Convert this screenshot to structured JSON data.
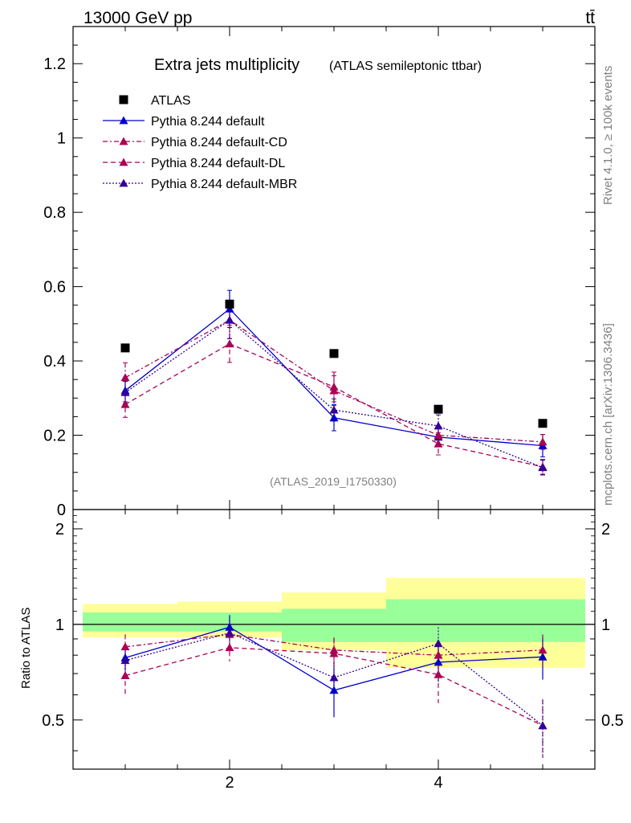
{
  "header": {
    "energy_label": "13000 GeV pp",
    "process_label": "tt̄"
  },
  "side_labels": {
    "rivet": "Rivet 4.1.0, ≥ 100k events",
    "mcplots": "mcplots.cern.ch [arXiv:1306.3436]"
  },
  "chart_data": {
    "type": "scatter",
    "title": "Extra jets multiplicity",
    "subtitle": "(ATLAS semileptonic ttbar)",
    "watermark": "(ATLAS_2019_I1750330)",
    "xlabel": "",
    "ylabel": "",
    "ratio_ylabel": "Ratio to ATLAS",
    "xlim": [
      0.5,
      5.5
    ],
    "ylim": [
      0,
      1.3
    ],
    "ratio_ylim": [
      0.35,
      2.3
    ],
    "x": [
      1,
      2,
      3,
      4,
      5
    ],
    "x_ticks": [
      2,
      4
    ],
    "x_tick_labels": [
      "2",
      "4"
    ],
    "y_ticks": [
      0,
      0.2,
      0.4,
      0.6,
      0.8,
      1,
      1.2
    ],
    "y_tick_labels": [
      "0",
      "0.2",
      "0.4",
      "0.6",
      "0.8",
      "1",
      "1.2"
    ],
    "ratio_ticks": [
      0.5,
      1,
      2
    ],
    "ratio_tick_labels": [
      "0.5",
      "1",
      "2"
    ],
    "band_edges": [
      0.5,
      1.5,
      2.5,
      3.5,
      4.5,
      5.5
    ],
    "band_inner": [
      [
        0.95,
        1.09
      ],
      [
        0.95,
        1.09
      ],
      [
        0.88,
        1.12
      ],
      [
        0.88,
        1.2
      ],
      [
        0.88,
        1.2
      ]
    ],
    "band_outer": [
      [
        0.91,
        1.16
      ],
      [
        0.91,
        1.18
      ],
      [
        0.83,
        1.26
      ],
      [
        0.73,
        1.4
      ],
      [
        0.73,
        1.4
      ]
    ],
    "data": {
      "name": "ATLAS",
      "values": [
        0.435,
        0.553,
        0.42,
        0.27,
        0.232
      ]
    },
    "series": [
      {
        "name": "Pythia 8.244 default",
        "color": "#0000cc",
        "style": "solid",
        "values": [
          0.32,
          0.54,
          0.247,
          0.195,
          0.172
        ],
        "errors": [
          0.03,
          0.05,
          0.035,
          0.025,
          0.03
        ],
        "ratio": [
          0.785,
          0.98,
          0.62,
          0.76,
          0.79
        ],
        "ratio_errors": [
          0.07,
          0.09,
          0.11,
          0.1,
          0.12
        ]
      },
      {
        "name": "Pythia 8.244 default-CD",
        "color": "#aa0055",
        "style": "dashdot",
        "values": [
          0.355,
          0.51,
          0.32,
          0.2,
          0.182
        ],
        "errors": [
          0.04,
          0.05,
          0.04,
          0.025,
          0.02
        ],
        "ratio": [
          0.85,
          0.93,
          0.83,
          0.8,
          0.83
        ],
        "ratio_errors": [
          0.08,
          0.08,
          0.08,
          0.08,
          0.1
        ]
      },
      {
        "name": "Pythia 8.244 default-DL",
        "color": "#aa0055",
        "style": "dashed",
        "values": [
          0.283,
          0.446,
          0.33,
          0.177,
          0.115
        ],
        "errors": [
          0.035,
          0.05,
          0.04,
          0.03,
          0.02
        ],
        "ratio": [
          0.69,
          0.845,
          0.81,
          0.695,
          0.48
        ],
        "ratio_errors": [
          0.1,
          0.08,
          0.09,
          0.13,
          0.1
        ]
      },
      {
        "name": "Pythia 8.244 default-MBR",
        "color": "#330099",
        "style": "dotted",
        "values": [
          0.315,
          0.51,
          0.268,
          0.225,
          0.113
        ],
        "errors": [
          0.03,
          0.05,
          0.03,
          0.03,
          0.02
        ],
        "ratio": [
          0.77,
          0.94,
          0.68,
          0.87,
          0.48
        ],
        "ratio_errors": [
          0.07,
          0.09,
          0.08,
          0.11,
          0.1
        ]
      }
    ]
  }
}
